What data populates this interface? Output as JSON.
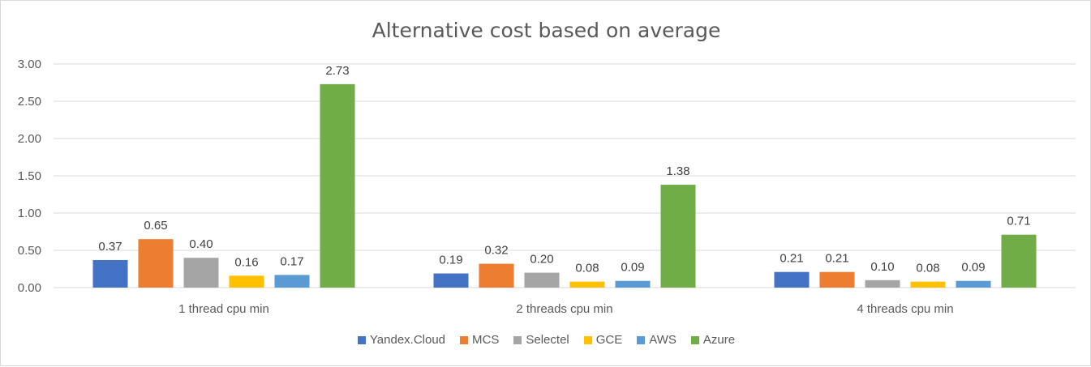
{
  "chart_data": {
    "type": "bar",
    "title": "Alternative cost based on average",
    "xlabel": "",
    "ylabel": "",
    "ylim": [
      0,
      3
    ],
    "yticks": [
      "0.00",
      "0.50",
      "1.00",
      "1.50",
      "2.00",
      "2.50",
      "3.00"
    ],
    "grid": true,
    "legend_position": "bottom",
    "categories": [
      "1 thread cpu min",
      "2 threads cpu min",
      "4 threads cpu min"
    ],
    "series": [
      {
        "name": "Yandex.Cloud",
        "color": "#4472C4",
        "values": [
          0.37,
          0.19,
          0.21
        ],
        "labels": [
          "0.37",
          "0.19",
          "0.21"
        ]
      },
      {
        "name": "MCS",
        "color": "#ED7D31",
        "values": [
          0.65,
          0.32,
          0.21
        ],
        "labels": [
          "0.65",
          "0.32",
          "0.21"
        ]
      },
      {
        "name": "Selectel",
        "color": "#A5A5A5",
        "values": [
          0.4,
          0.2,
          0.1
        ],
        "labels": [
          "0.40",
          "0.20",
          "0.10"
        ]
      },
      {
        "name": "GCE",
        "color": "#FFC000",
        "values": [
          0.16,
          0.08,
          0.08
        ],
        "labels": [
          "0.16",
          "0.08",
          "0.08"
        ]
      },
      {
        "name": "AWS",
        "color": "#5B9BD5",
        "values": [
          0.17,
          0.09,
          0.09
        ],
        "labels": [
          "0.17",
          "0.09",
          "0.09"
        ]
      },
      {
        "name": "Azure",
        "color": "#70AD47",
        "values": [
          2.73,
          1.38,
          0.71
        ],
        "labels": [
          "2.73",
          "1.38",
          "0.71"
        ]
      }
    ]
  }
}
